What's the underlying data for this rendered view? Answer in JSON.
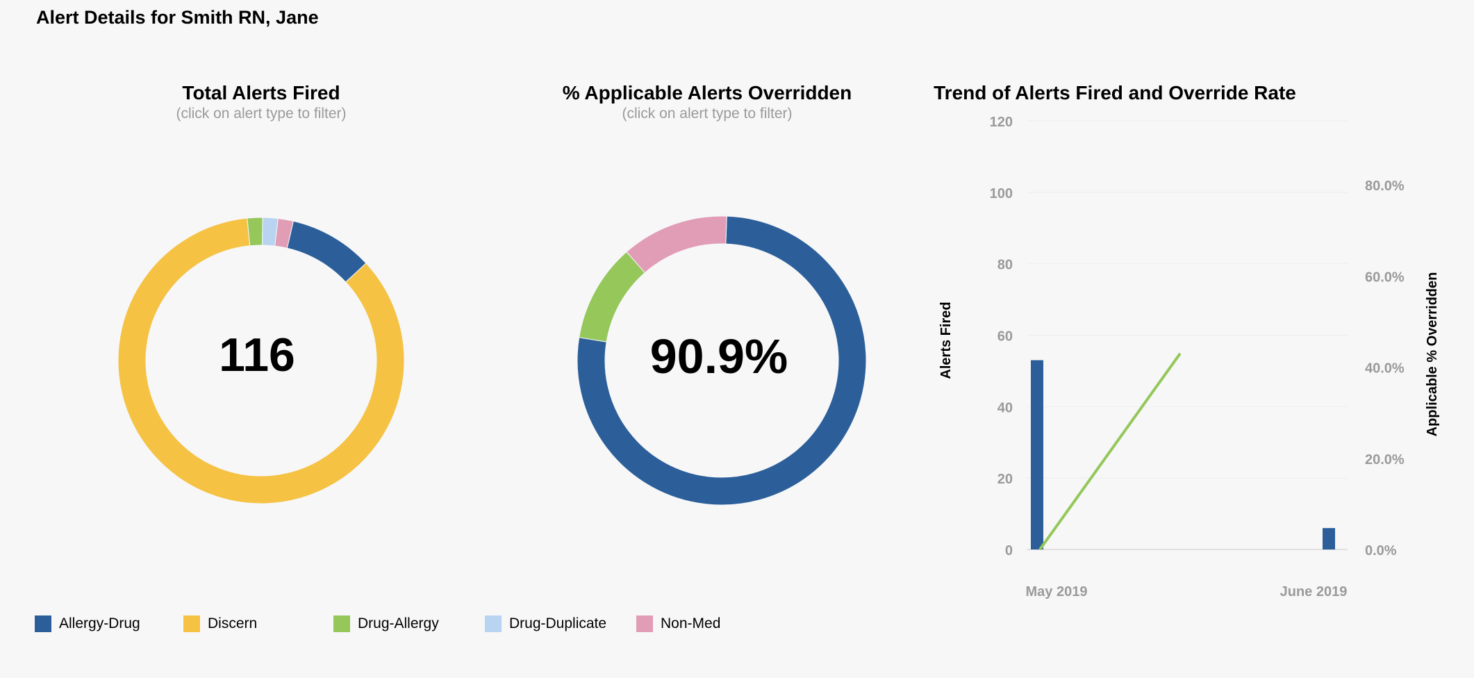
{
  "page": {
    "title": "Alert Details for Smith RN, Jane"
  },
  "colors": {
    "Allergy-Drug": "#2c5f9a",
    "Discern": "#f5c244",
    "Drug-Allergy": "#95c75b",
    "Drug-Duplicate": "#b8d4f0",
    "Non-Med": "#e19db6",
    "axis_text": "#9a9a9a"
  },
  "total_panel": {
    "title": "Total Alerts Fired",
    "subtitle": "(click on alert type to filter)",
    "center_value": "116"
  },
  "override_panel": {
    "title": "% Applicable Alerts Overridden",
    "subtitle": "(click on alert type to filter)",
    "center_value": "90.9%"
  },
  "trend_panel": {
    "title": "Trend of Alerts Fired and Override Rate"
  },
  "legend": [
    "Allergy-Drug",
    "Discern",
    "Drug-Allergy",
    "Drug-Duplicate",
    "Non-Med"
  ],
  "chart_data": [
    {
      "type": "pie",
      "title": "Total Alerts Fired",
      "subtitle": "(click on alert type to filter)",
      "center_label": "116",
      "categories": [
        "Allergy-Drug",
        "Discern",
        "Drug-Allergy",
        "Drug-Duplicate",
        "Non-Med"
      ],
      "values": [
        11,
        99,
        2,
        2,
        2
      ]
    },
    {
      "type": "pie",
      "title": "% Applicable Alerts Overridden",
      "subtitle": "(click on alert type to filter)",
      "center_label": "90.9%",
      "categories": [
        "Allergy-Drug",
        "Drug-Allergy",
        "Non-Med"
      ],
      "values": [
        77,
        11,
        12
      ]
    },
    {
      "type": "bar",
      "title": "Trend of Alerts Fired and Override Rate",
      "categories": [
        "May 2019",
        "June 2019"
      ],
      "xlabel": "",
      "ylabel": "Alerts Fired",
      "ylim": [
        0,
        120
      ],
      "yticks": [
        0,
        20,
        40,
        60,
        80,
        100,
        120
      ],
      "y2label": "Applicable % Overridden",
      "y2lim": [
        0,
        80
      ],
      "y2ticks": [
        "0.0%",
        "20.0%",
        "40.0%",
        "60.0%",
        "80.0%"
      ],
      "series": [
        {
          "name": "Allergy-Drug",
          "type": "bar",
          "axis": "left",
          "values": [
            53,
            6
          ]
        }
      ],
      "line": {
        "axis": "right",
        "x": [
          "May 2019",
          "mid-May 2019"
        ],
        "values": [
          0,
          43
        ]
      },
      "grid": true
    }
  ]
}
